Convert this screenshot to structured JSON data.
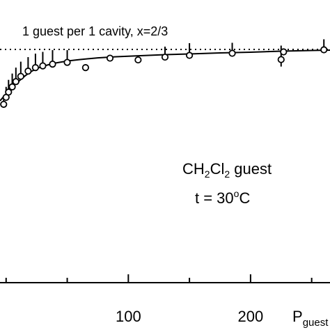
{
  "chart_data": {
    "type": "scatter",
    "title": "",
    "xlabel": "P",
    "xlabel_sub": "guest",
    "ylabel": "",
    "xlim": [
      -5,
      265
    ],
    "ylim": [
      0,
      1.0
    ],
    "xticks": [
      100,
      200
    ],
    "xtick_labels": [
      "100",
      "200"
    ],
    "grid": false,
    "reference_line": {
      "y": 0.667,
      "label": "1 guest per 1 cavity, x=2/3",
      "style": "dotted"
    },
    "annotation": {
      "line1_prefix": "CH",
      "line1_sub1": "2",
      "line1_mid": "Cl",
      "line1_sub2": "2",
      "line1_suffix": " guest",
      "line2_prefix": "t = 30",
      "line2_sup": "o",
      "line2_suffix": "C"
    },
    "series": [
      {
        "kind": "points",
        "x": [
          -2,
          0,
          2,
          5,
          8,
          12,
          18,
          24,
          30,
          38,
          50,
          65,
          85,
          108,
          130,
          150,
          185,
          225,
          227,
          260
        ],
        "y": [
          0.51,
          0.53,
          0.545,
          0.56,
          0.575,
          0.59,
          0.605,
          0.615,
          0.62,
          0.625,
          0.63,
          0.615,
          0.642,
          0.637,
          0.645,
          0.65,
          0.656,
          0.638,
          0.66,
          0.666
        ],
        "err_up": [
          0.02,
          0.03,
          0.035,
          0.038,
          0.04,
          0.042,
          0.04,
          0.04,
          0.04,
          0.04,
          0.035,
          0.0,
          0.0,
          0.0,
          0.03,
          0.035,
          0.03,
          0.04,
          0.0,
          0.03
        ],
        "err_down": [
          0.0,
          0.0,
          0.0,
          0.0,
          0.0,
          0.0,
          0.0,
          0.0,
          0.0,
          0.0,
          0.0,
          0.0,
          0.0,
          0.0,
          0.0,
          0.0,
          0.0,
          0.02,
          0.0,
          0.0
        ]
      },
      {
        "kind": "curve",
        "x": [
          -5,
          0,
          5,
          10,
          15,
          20,
          25,
          30,
          40,
          50,
          60,
          75,
          90,
          110,
          130,
          150,
          175,
          200,
          225,
          250,
          265
        ],
        "y": [
          0.52,
          0.54,
          0.56,
          0.575,
          0.59,
          0.603,
          0.612,
          0.619,
          0.628,
          0.634,
          0.638,
          0.643,
          0.646,
          0.649,
          0.652,
          0.654,
          0.657,
          0.659,
          0.662,
          0.664,
          0.665
        ]
      }
    ]
  }
}
